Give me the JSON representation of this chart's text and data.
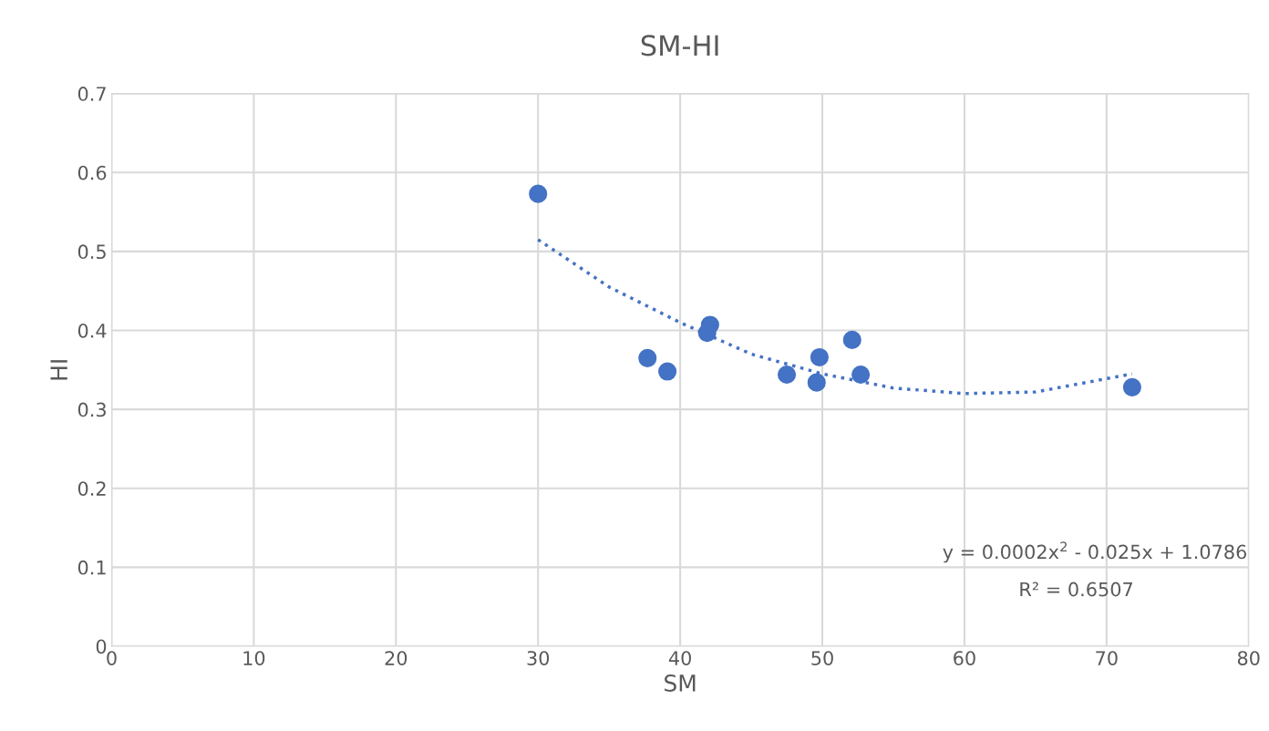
{
  "chart_data": {
    "type": "scatter",
    "title": "SM-HI",
    "xlabel": "SM",
    "ylabel": "HI",
    "xlim": [
      0,
      80
    ],
    "xticks": [
      0,
      10,
      20,
      30,
      40,
      50,
      60,
      70,
      80
    ],
    "ylim": [
      0,
      0.7
    ],
    "yticks": [
      0,
      0.1,
      0.2,
      0.3,
      0.4,
      0.5,
      0.6,
      0.7
    ],
    "grid": true,
    "series": [
      {
        "marker": "circle",
        "color": "#4472c4",
        "x": [
          30.0,
          37.7,
          39.1,
          42.1,
          41.9,
          47.5,
          49.6,
          49.8,
          52.1,
          52.7,
          71.8
        ],
        "values": [
          0.573,
          0.365,
          0.348,
          0.407,
          0.397,
          0.344,
          0.334,
          0.366,
          0.388,
          0.344,
          0.328
        ]
      },
      {
        "type": "line",
        "marker": "none",
        "color": "#4472c4",
        "line_style": "dotted",
        "x": [
          30,
          35,
          40,
          45,
          50,
          55,
          60,
          65,
          71.8
        ],
        "values": [
          0.515,
          0.455,
          0.41,
          0.37,
          0.345,
          0.327,
          0.32,
          0.322,
          0.345
        ]
      }
    ],
    "annotations": [
      "y = 0.0002x$^{2}$ - 0.025x + 1.0786",
      "R² = 0.6507"
    ]
  }
}
